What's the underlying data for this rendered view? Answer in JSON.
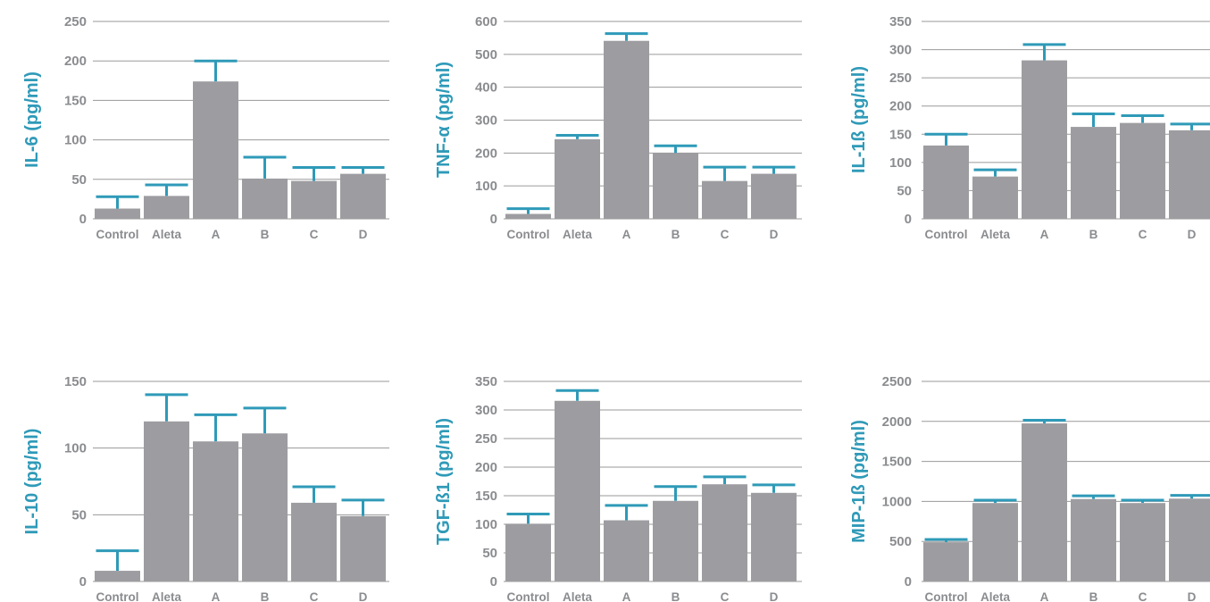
{
  "colors": {
    "bar": "#9d9da1",
    "error": "#2f9ab8",
    "grid": "#9a9a9a",
    "axis_label": "#2f9ab8",
    "tick": "#8a8c8f"
  },
  "chart_data": [
    {
      "type": "bar",
      "ylabel": "IL-6 (pg/ml)",
      "categories": [
        "Control",
        "Aleta",
        "A",
        "B",
        "C",
        "D"
      ],
      "values": [
        13,
        29,
        174,
        51,
        48,
        57
      ],
      "errors": [
        15,
        14,
        26,
        27,
        17,
        8
      ],
      "ylim": [
        0,
        250
      ],
      "yticks": [
        0,
        50,
        100,
        150,
        200,
        250
      ],
      "grid": true
    },
    {
      "type": "bar",
      "ylabel": "TNF-α (pg/ml)",
      "categories": [
        "Control",
        "Aleta",
        "A",
        "B",
        "C",
        "D"
      ],
      "values": [
        15,
        242,
        541,
        200,
        115,
        137
      ],
      "errors": [
        16,
        12,
        22,
        22,
        42,
        20
      ],
      "ylim": [
        0,
        600
      ],
      "yticks": [
        0,
        100,
        200,
        300,
        400,
        500,
        600
      ],
      "grid": true
    },
    {
      "type": "bar",
      "ylabel": "IL-1ß (pg/ml)",
      "categories": [
        "Control",
        "Aleta",
        "A",
        "B",
        "C",
        "D"
      ],
      "values": [
        130,
        75,
        281,
        163,
        170,
        157
      ],
      "errors": [
        20,
        12,
        28,
        23,
        13,
        11
      ],
      "ylim": [
        0,
        350
      ],
      "yticks": [
        0,
        50,
        100,
        150,
        200,
        250,
        300,
        350
      ],
      "grid": true
    },
    {
      "type": "bar",
      "ylabel": "IL-10 (pg/ml)",
      "categories": [
        "Control",
        "Aleta",
        "A",
        "B",
        "C",
        "D"
      ],
      "values": [
        8,
        120,
        105,
        111,
        59,
        49
      ],
      "errors": [
        15,
        20,
        20,
        19,
        12,
        12
      ],
      "ylim": [
        0,
        150
      ],
      "yticks": [
        0,
        50,
        100,
        150
      ],
      "grid": true
    },
    {
      "type": "bar",
      "ylabel": "TGF-ß1 (pg/ml)",
      "categories": [
        "Control",
        "Aleta",
        "A",
        "B",
        "C",
        "D"
      ],
      "values": [
        101,
        316,
        107,
        141,
        170,
        155
      ],
      "errors": [
        17,
        18,
        26,
        25,
        13,
        14
      ],
      "ylim": [
        0,
        350
      ],
      "yticks": [
        0,
        50,
        100,
        150,
        200,
        250,
        300,
        350
      ],
      "grid": true
    },
    {
      "type": "bar",
      "ylabel": "MIP-1ß (pg/ml)",
      "categories": [
        "Control",
        "Aleta",
        "A",
        "B",
        "C",
        "D"
      ],
      "values": [
        490,
        980,
        1975,
        1030,
        980,
        1035
      ],
      "errors": [
        35,
        35,
        40,
        40,
        35,
        40
      ],
      "ylim": [
        0,
        2500
      ],
      "yticks": [
        0,
        500,
        1000,
        1500,
        2000,
        2500
      ],
      "grid": true
    }
  ]
}
